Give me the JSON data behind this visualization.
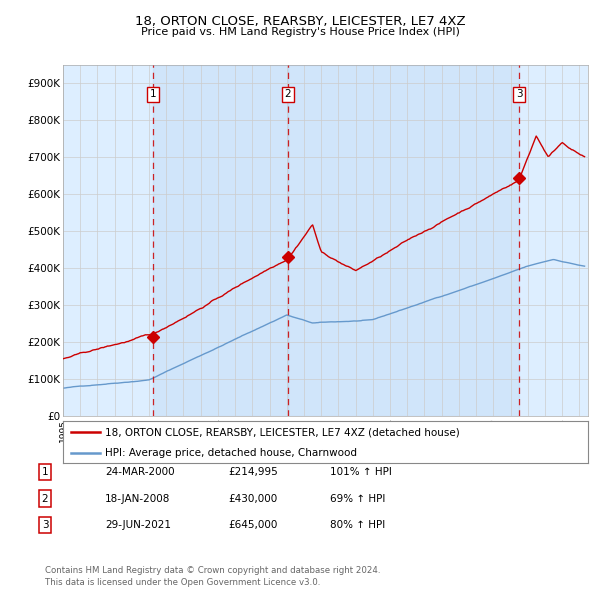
{
  "title": "18, ORTON CLOSE, REARSBY, LEICESTER, LE7 4XZ",
  "subtitle": "Price paid vs. HM Land Registry's House Price Index (HPI)",
  "xlim_start": 1995.0,
  "xlim_end": 2025.5,
  "ylim": [
    0,
    950000
  ],
  "yticks": [
    0,
    100000,
    200000,
    300000,
    400000,
    500000,
    600000,
    700000,
    800000,
    900000
  ],
  "ytick_labels": [
    "£0",
    "£100K",
    "£200K",
    "£300K",
    "£400K",
    "£500K",
    "£600K",
    "£700K",
    "£800K",
    "£900K"
  ],
  "sale_dates": [
    2000.23,
    2008.05,
    2021.49
  ],
  "sale_prices": [
    214995,
    430000,
    645000
  ],
  "sale_labels": [
    "1",
    "2",
    "3"
  ],
  "legend_red": "18, ORTON CLOSE, REARSBY, LEICESTER, LE7 4XZ (detached house)",
  "legend_blue": "HPI: Average price, detached house, Charnwood",
  "table_data": [
    [
      "1",
      "24-MAR-2000",
      "£214,995",
      "101% ↑ HPI"
    ],
    [
      "2",
      "18-JAN-2008",
      "£430,000",
      "69% ↑ HPI"
    ],
    [
      "3",
      "29-JUN-2021",
      "£645,000",
      "80% ↑ HPI"
    ]
  ],
  "footer": "Contains HM Land Registry data © Crown copyright and database right 2024.\nThis data is licensed under the Open Government Licence v3.0.",
  "red_color": "#cc0000",
  "blue_color": "#6699cc",
  "bg_color": "#ddeeff",
  "grid_color": "#cccccc",
  "dashed_color": "#cc0000"
}
